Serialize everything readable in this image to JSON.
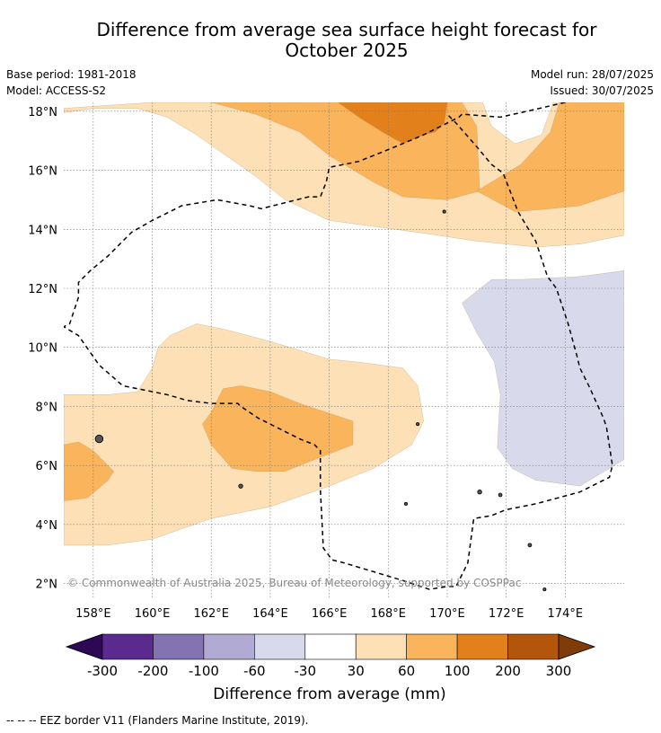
{
  "header": {
    "title_line1": "Difference from average sea surface height forecast for",
    "title_line2": "October 2025",
    "base_period": "Base period: 1981-2018",
    "model": "Model: ACCESS-S2",
    "model_run": "Model run: 28/07/2025",
    "issued": "Issued: 30/07/2025"
  },
  "copyright": "© Commonwealth of Australia 2025, Bureau of Meteorology, supported by COSPPac",
  "footer": {
    "eez_note": "--  --  -- EEZ border V11 (Flanders Marine Institute, 2019)."
  },
  "colors": {
    "c30_60": "#fde0b6",
    "c60_100": "#f9b45c",
    "c100_200": "#e2811c",
    "cm60_m30": "#d8d9eb",
    "grid": "#777777"
  },
  "chart_data": {
    "type": "heatmap",
    "variable": "Sea surface height anomaly",
    "units": "mm",
    "xlabel": "",
    "ylabel": "",
    "xlim": [
      157,
      176
    ],
    "ylim": [
      1.5,
      18.3
    ],
    "grid": true,
    "x_ticks": [
      {
        "value": 158,
        "label": "158°E"
      },
      {
        "value": 160,
        "label": "160°E"
      },
      {
        "value": 162,
        "label": "162°E"
      },
      {
        "value": 164,
        "label": "164°E"
      },
      {
        "value": 166,
        "label": "166°E"
      },
      {
        "value": 168,
        "label": "168°E"
      },
      {
        "value": 170,
        "label": "170°E"
      },
      {
        "value": 172,
        "label": "172°E"
      },
      {
        "value": 174,
        "label": "174°E"
      }
    ],
    "y_ticks": [
      {
        "value": 2,
        "label": "2°N"
      },
      {
        "value": 4,
        "label": "4°N"
      },
      {
        "value": 6,
        "label": "6°N"
      },
      {
        "value": 8,
        "label": "8°N"
      },
      {
        "value": 10,
        "label": "10°N"
      },
      {
        "value": 12,
        "label": "12°N"
      },
      {
        "value": 14,
        "label": "14°N"
      },
      {
        "value": 16,
        "label": "16°N"
      },
      {
        "value": 18,
        "label": "18°N"
      }
    ],
    "regions": [
      {
        "level": "30 to 60",
        "color_key": "c30_60",
        "points": [
          [
            157,
            18.1
          ],
          [
            160,
            18.3
          ],
          [
            164,
            18.3
          ],
          [
            166.5,
            18.3
          ],
          [
            170,
            18.3
          ],
          [
            171.2,
            18.3
          ],
          [
            171.5,
            17.5
          ],
          [
            172.3,
            16.9
          ],
          [
            173.2,
            17.2
          ],
          [
            173.6,
            18.3
          ],
          [
            176,
            18.3
          ],
          [
            176,
            13.8
          ],
          [
            174.5,
            13.5
          ],
          [
            173,
            13.4
          ],
          [
            171,
            13.6
          ],
          [
            169,
            13.9
          ],
          [
            167.5,
            14.1
          ],
          [
            166,
            14.3
          ],
          [
            164.5,
            15
          ],
          [
            163.5,
            15.8
          ],
          [
            162.5,
            16.5
          ],
          [
            161.5,
            17.2
          ],
          [
            160.5,
            17.8
          ],
          [
            159.5,
            18.1
          ],
          [
            158,
            18.1
          ],
          [
            157,
            17.95
          ]
        ]
      },
      {
        "level": "30 to 60",
        "color_key": "c30_60",
        "points": [
          [
            157,
            8.4
          ],
          [
            158.5,
            8.4
          ],
          [
            159.5,
            8.5
          ],
          [
            160,
            9.3
          ],
          [
            160.2,
            10
          ],
          [
            160.6,
            10.4
          ],
          [
            161.5,
            10.8
          ],
          [
            162.5,
            10.6
          ],
          [
            164,
            10.2
          ],
          [
            166,
            9.6
          ],
          [
            167,
            9.5
          ],
          [
            168.5,
            9.3
          ],
          [
            169,
            8.7
          ],
          [
            169.2,
            7.5
          ],
          [
            168.8,
            6.7
          ],
          [
            167.5,
            5.9
          ],
          [
            166,
            5.3
          ],
          [
            164,
            4.6
          ],
          [
            162,
            4.2
          ],
          [
            160,
            3.5
          ],
          [
            158.5,
            3.3
          ],
          [
            157,
            3.3
          ]
        ]
      },
      {
        "level": "60 to 100",
        "color_key": "c60_100",
        "points": [
          [
            162,
            18.3
          ],
          [
            166.5,
            18.3
          ],
          [
            170.5,
            18.3
          ],
          [
            171,
            17.5
          ],
          [
            171.1,
            15.3
          ],
          [
            170,
            15
          ],
          [
            168.5,
            15.1
          ],
          [
            167.5,
            15.6
          ],
          [
            166,
            16.5
          ],
          [
            165,
            17.3
          ],
          [
            163.5,
            17.9
          ]
        ]
      },
      {
        "level": "60 to 100",
        "color_key": "c60_100",
        "points": [
          [
            176,
            18.3
          ],
          [
            173.8,
            18.3
          ],
          [
            173.5,
            17.3
          ],
          [
            172.5,
            16.2
          ],
          [
            171,
            15.3
          ],
          [
            172.3,
            14.6
          ],
          [
            173.5,
            14.7
          ],
          [
            174.5,
            14.8
          ],
          [
            176,
            15.3
          ]
        ]
      },
      {
        "level": "60 to 100",
        "color_key": "c60_100",
        "points": [
          [
            162,
            7.8
          ],
          [
            162.4,
            8.6
          ],
          [
            163,
            8.7
          ],
          [
            164,
            8.5
          ],
          [
            165,
            8.1
          ],
          [
            166.8,
            7.5
          ],
          [
            166.8,
            6.7
          ],
          [
            165.5,
            6.2
          ],
          [
            164.5,
            5.8
          ],
          [
            163.5,
            5.8
          ],
          [
            162.7,
            5.9
          ],
          [
            162,
            6.7
          ],
          [
            161.7,
            7.4
          ]
        ]
      },
      {
        "level": "60 to 100",
        "color_key": "c60_100",
        "points": [
          [
            157,
            6.7
          ],
          [
            157.5,
            6.8
          ],
          [
            158,
            6.5
          ],
          [
            158.7,
            5.8
          ],
          [
            158.5,
            5.5
          ],
          [
            157.8,
            4.9
          ],
          [
            157,
            4.8
          ]
        ]
      },
      {
        "level": "100 to 200",
        "color_key": "c100_200",
        "points": [
          [
            166.3,
            18.3
          ],
          [
            170,
            18.3
          ],
          [
            169.9,
            17.6
          ],
          [
            169.6,
            17.3
          ],
          [
            169.2,
            17.2
          ],
          [
            168.5,
            16.9
          ],
          [
            167.8,
            17.3
          ],
          [
            167,
            17.8
          ]
        ]
      },
      {
        "level": "-60 to -30",
        "color_key": "cm60_m30",
        "points": [
          [
            176,
            12.6
          ],
          [
            174.5,
            12.4
          ],
          [
            172.5,
            12.3
          ],
          [
            171.5,
            12.3
          ],
          [
            170.5,
            11.5
          ],
          [
            171,
            10.5
          ],
          [
            171.6,
            9.5
          ],
          [
            171.8,
            8.4
          ],
          [
            171.7,
            6.6
          ],
          [
            172.2,
            5.9
          ],
          [
            173,
            5.5
          ],
          [
            174.5,
            5.3
          ],
          [
            176,
            6.2
          ]
        ]
      }
    ],
    "eez_border": [
      [
        174,
        18.3
      ],
      [
        172.7,
        18
      ],
      [
        171.8,
        17.8
      ],
      [
        170.5,
        17.9
      ],
      [
        170.4,
        17.8
      ],
      [
        169.8,
        17.5
      ],
      [
        169.2,
        17.2
      ],
      [
        168,
        16.7
      ],
      [
        167,
        16.3
      ],
      [
        166.0,
        16.1
      ],
      [
        165.9,
        15.6
      ],
      [
        165.7,
        15.1
      ],
      [
        165.3,
        15.1
      ],
      [
        164.5,
        14.9
      ],
      [
        163.7,
        14.7
      ],
      [
        163.3,
        14.8
      ],
      [
        162.2,
        15.0
      ],
      [
        161,
        14.8
      ],
      [
        160,
        14.3
      ],
      [
        159.3,
        13.9
      ],
      [
        158.5,
        13.1
      ],
      [
        157.9,
        12.6
      ],
      [
        157.5,
        12.2
      ],
      [
        157.5,
        11.7
      ],
      [
        157.2,
        10.8
      ],
      [
        157,
        10.7
      ],
      [
        157.5,
        10.4
      ],
      [
        158.2,
        9.4
      ],
      [
        159,
        8.7
      ],
      [
        160.5,
        8.4
      ],
      [
        161.2,
        8.2
      ],
      [
        162,
        8.1
      ],
      [
        162.9,
        8.1
      ],
      [
        163,
        8.0
      ],
      [
        163.6,
        7.6
      ],
      [
        164.4,
        7.2
      ],
      [
        165,
        6.9
      ],
      [
        165.5,
        6.7
      ],
      [
        165.7,
        6.5
      ],
      [
        165.7,
        5.2
      ],
      [
        165.8,
        3.2
      ],
      [
        166.1,
        2.8
      ],
      [
        166.5,
        2.7
      ],
      [
        167.5,
        2.4
      ],
      [
        168.5,
        2.1
      ],
      [
        169.4,
        1.8
      ],
      [
        170,
        1.9
      ],
      [
        170.3,
        1.9
      ],
      [
        170.7,
        2.7
      ],
      [
        170.9,
        4.2
      ],
      [
        171.5,
        4.3
      ],
      [
        172.0,
        4.5
      ],
      [
        173.0,
        4.7
      ],
      [
        174.5,
        5.1
      ],
      [
        175.5,
        5.6
      ],
      [
        175.6,
        6
      ],
      [
        175.4,
        7.3
      ],
      [
        175.3,
        7.6
      ],
      [
        174.8,
        8.7
      ],
      [
        174.5,
        9.3
      ],
      [
        174.4,
        9.7
      ],
      [
        174.1,
        10.8
      ],
      [
        173.7,
        12.0
      ],
      [
        173.4,
        12.4
      ],
      [
        173.0,
        13.6
      ],
      [
        172.7,
        14.1
      ],
      [
        172.4,
        14.6
      ],
      [
        171.9,
        15.9
      ],
      [
        171.5,
        16.2
      ],
      [
        171.0,
        16.8
      ],
      [
        170.3,
        17.6
      ],
      [
        170,
        17.9
      ]
    ],
    "islands": [
      {
        "pos": [
          158.2,
          6.9
        ],
        "r": 0.13
      },
      {
        "pos": [
          163,
          5.3
        ],
        "r": 0.07
      },
      {
        "pos": [
          171.1,
          5.1
        ],
        "r": 0.07
      },
      {
        "pos": [
          171.8,
          5.0
        ],
        "r": 0.06
      },
      {
        "pos": [
          172.8,
          3.3
        ],
        "r": 0.06
      },
      {
        "pos": [
          173.3,
          1.8
        ],
        "r": 0.05
      },
      {
        "pos": [
          168.6,
          4.7
        ],
        "r": 0.05
      },
      {
        "pos": [
          169.0,
          7.4
        ],
        "r": 0.05
      },
      {
        "pos": [
          169.9,
          14.6
        ],
        "r": 0.05
      }
    ],
    "legend": {
      "label": "Difference from average (mm)",
      "tick_labels": [
        "-300",
        "-200",
        "-100",
        "-60",
        "-30",
        "30",
        "60",
        "100",
        "200",
        "300"
      ],
      "extend_low_color": "#2e0854",
      "extend_high_color": "#7f3b08",
      "bins": [
        {
          "range": "-300 to -200",
          "color": "#5a2a8f"
        },
        {
          "range": "-200 to -100",
          "color": "#8473b1"
        },
        {
          "range": "-100 to -60",
          "color": "#b1aad2"
        },
        {
          "range": "-60 to -30",
          "color": "#d8d9eb"
        },
        {
          "range": "-30 to 30",
          "color": "#ffffff"
        },
        {
          "range": "30 to 60",
          "color": "#fde0b6"
        },
        {
          "range": "60 to 100",
          "color": "#f9b45c"
        },
        {
          "range": "100 to 200",
          "color": "#e2811c"
        },
        {
          "range": "200 to 300",
          "color": "#b3560b"
        }
      ]
    }
  }
}
